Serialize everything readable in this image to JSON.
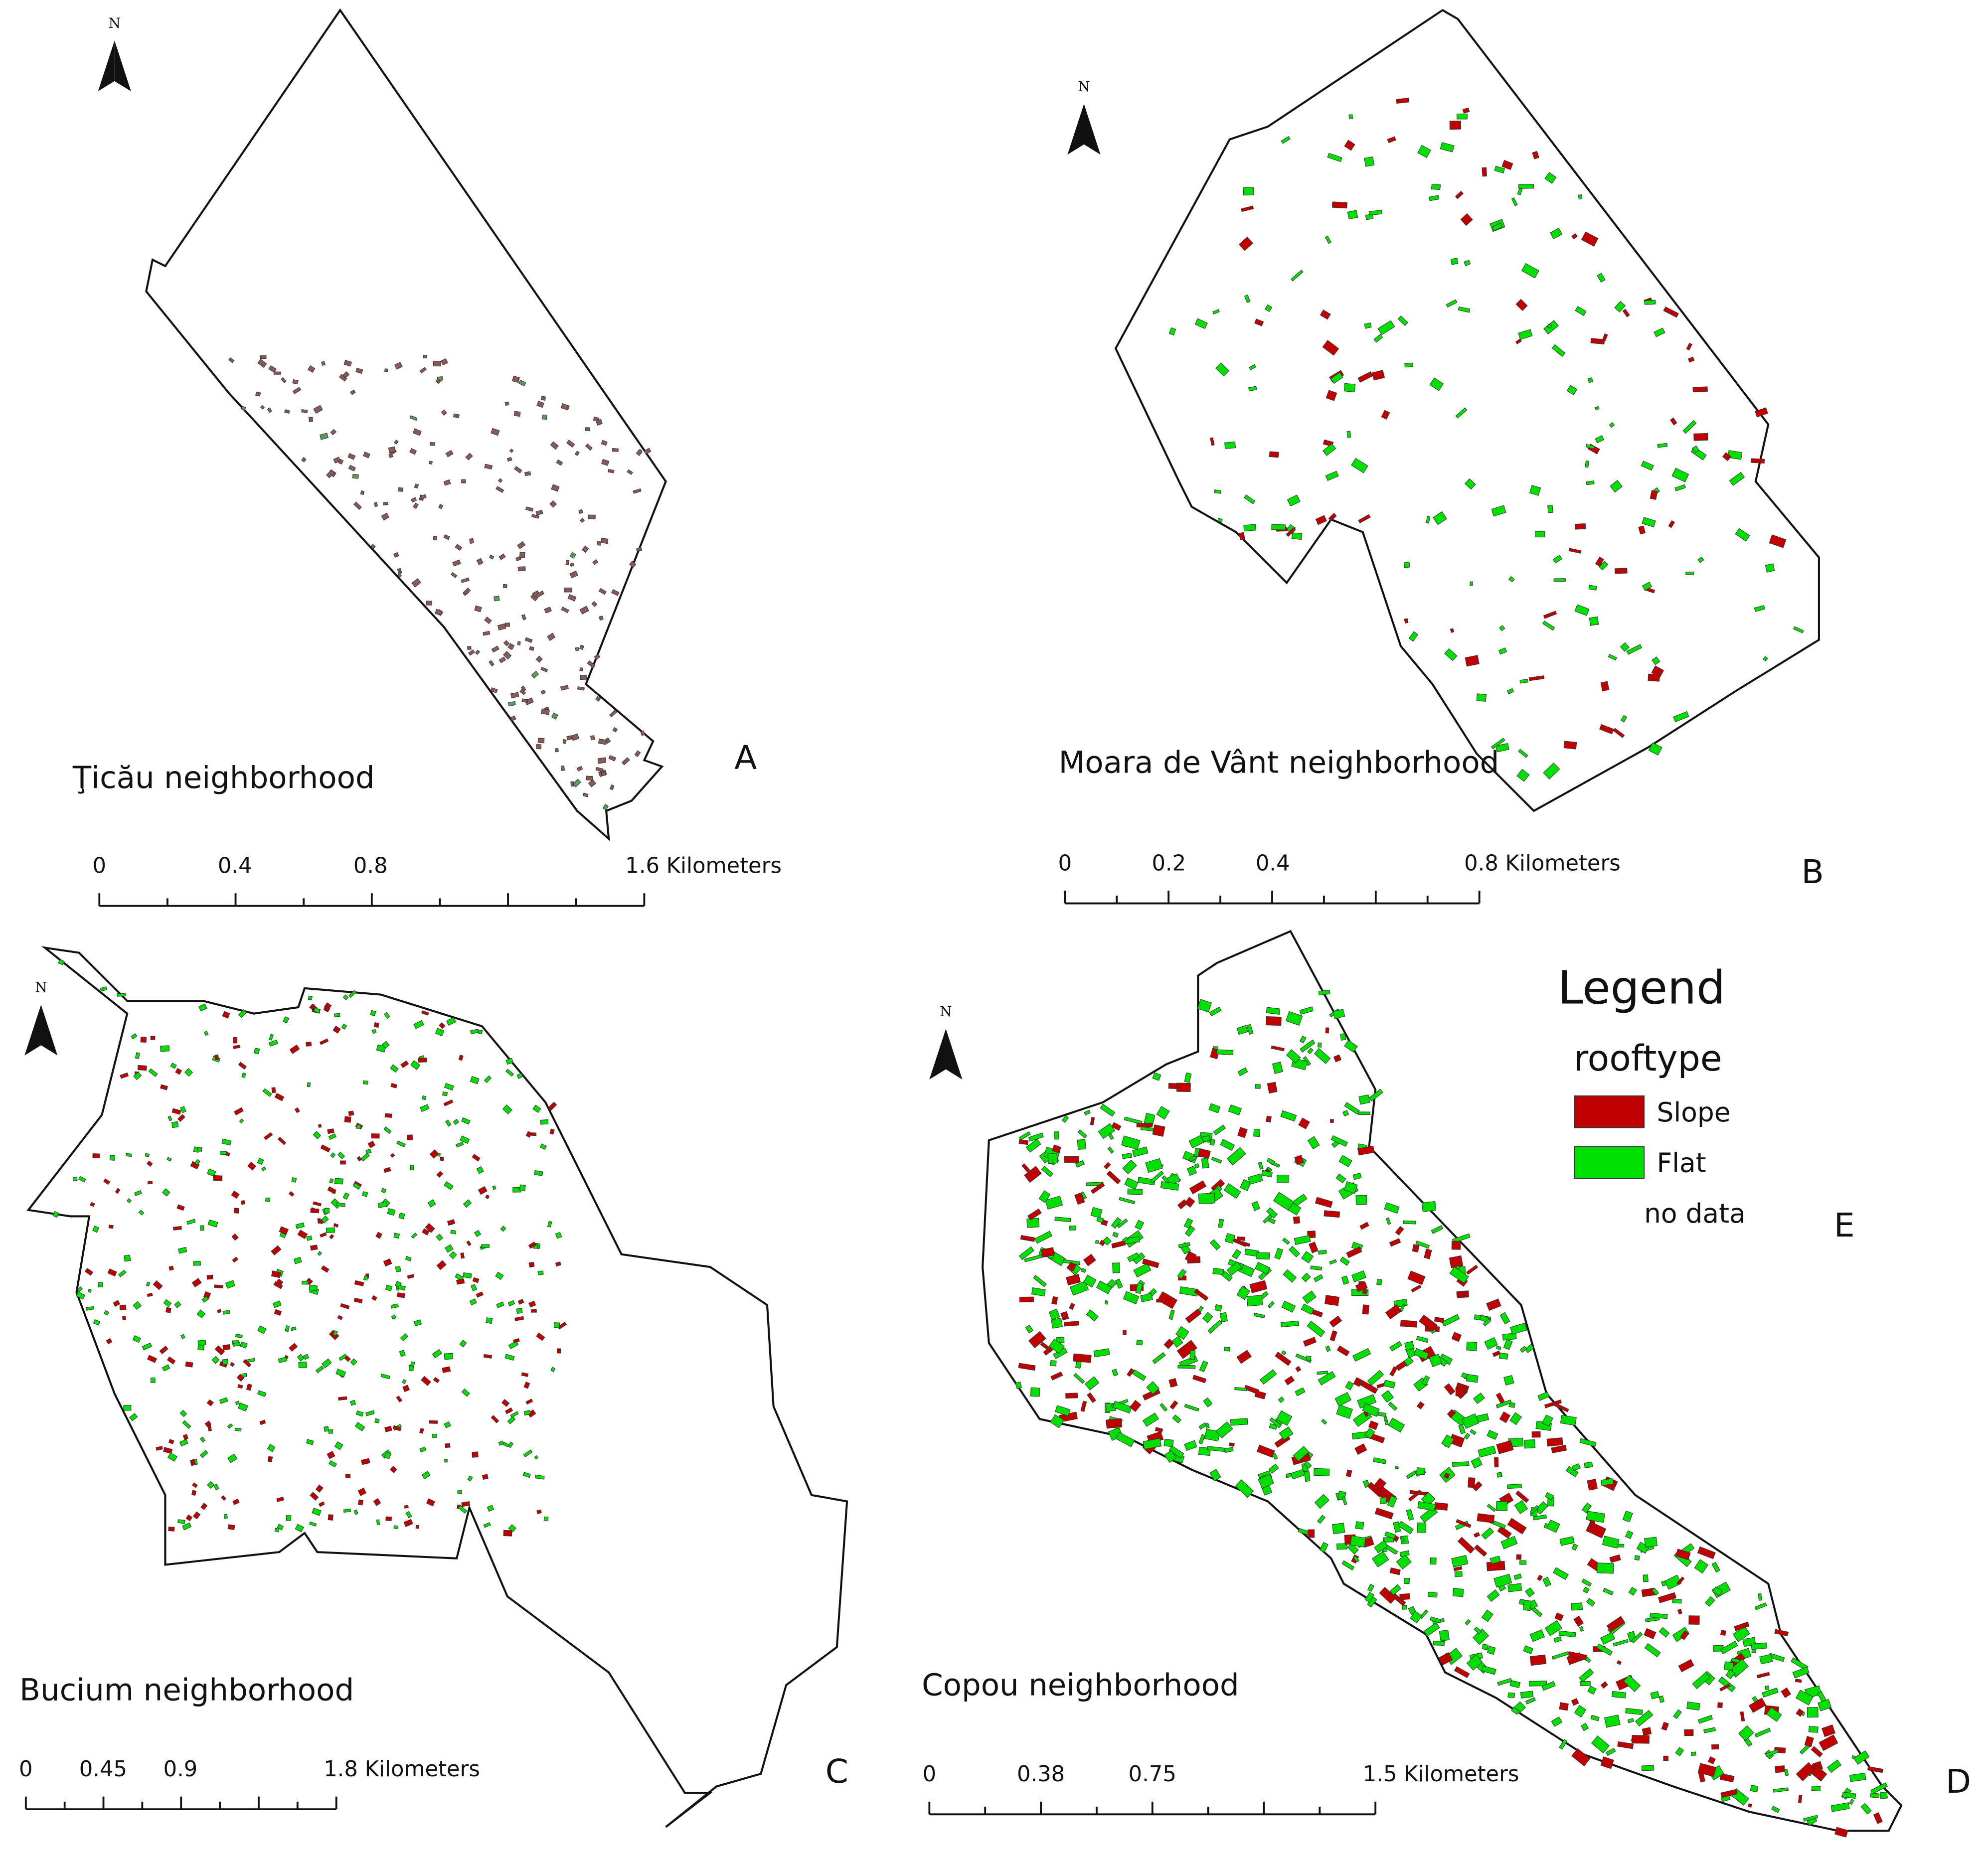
{
  "panels": [
    {
      "letter": "A",
      "name": "Ţicău neighborhood",
      "north": "N",
      "scale": [
        "0",
        "0.4",
        "0.8",
        "1.6 Kilometers"
      ]
    },
    {
      "letter": "B",
      "name": "Moara de Vânt neighborhood",
      "north": "N",
      "scale": [
        "0",
        "0.2",
        "0.4",
        "0.8 Kilometers"
      ]
    },
    {
      "letter": "C",
      "name": "Bucium neighborhood",
      "north": "N",
      "scale": [
        "0",
        "0.45",
        "0.9",
        "1.8 Kilometers"
      ]
    },
    {
      "letter": "D",
      "name": "Copou neighborhood",
      "north": "N",
      "scale": [
        "0",
        "0.38",
        "0.75",
        "1.5 Kilometers"
      ]
    }
  ],
  "legend": {
    "title": "Legend",
    "field": "rooftype",
    "letter": "E",
    "items": [
      {
        "label": "Slope",
        "color": "#c00000"
      },
      {
        "label": "Flat",
        "color": "#00e000"
      },
      {
        "label": "no data"
      }
    ]
  }
}
